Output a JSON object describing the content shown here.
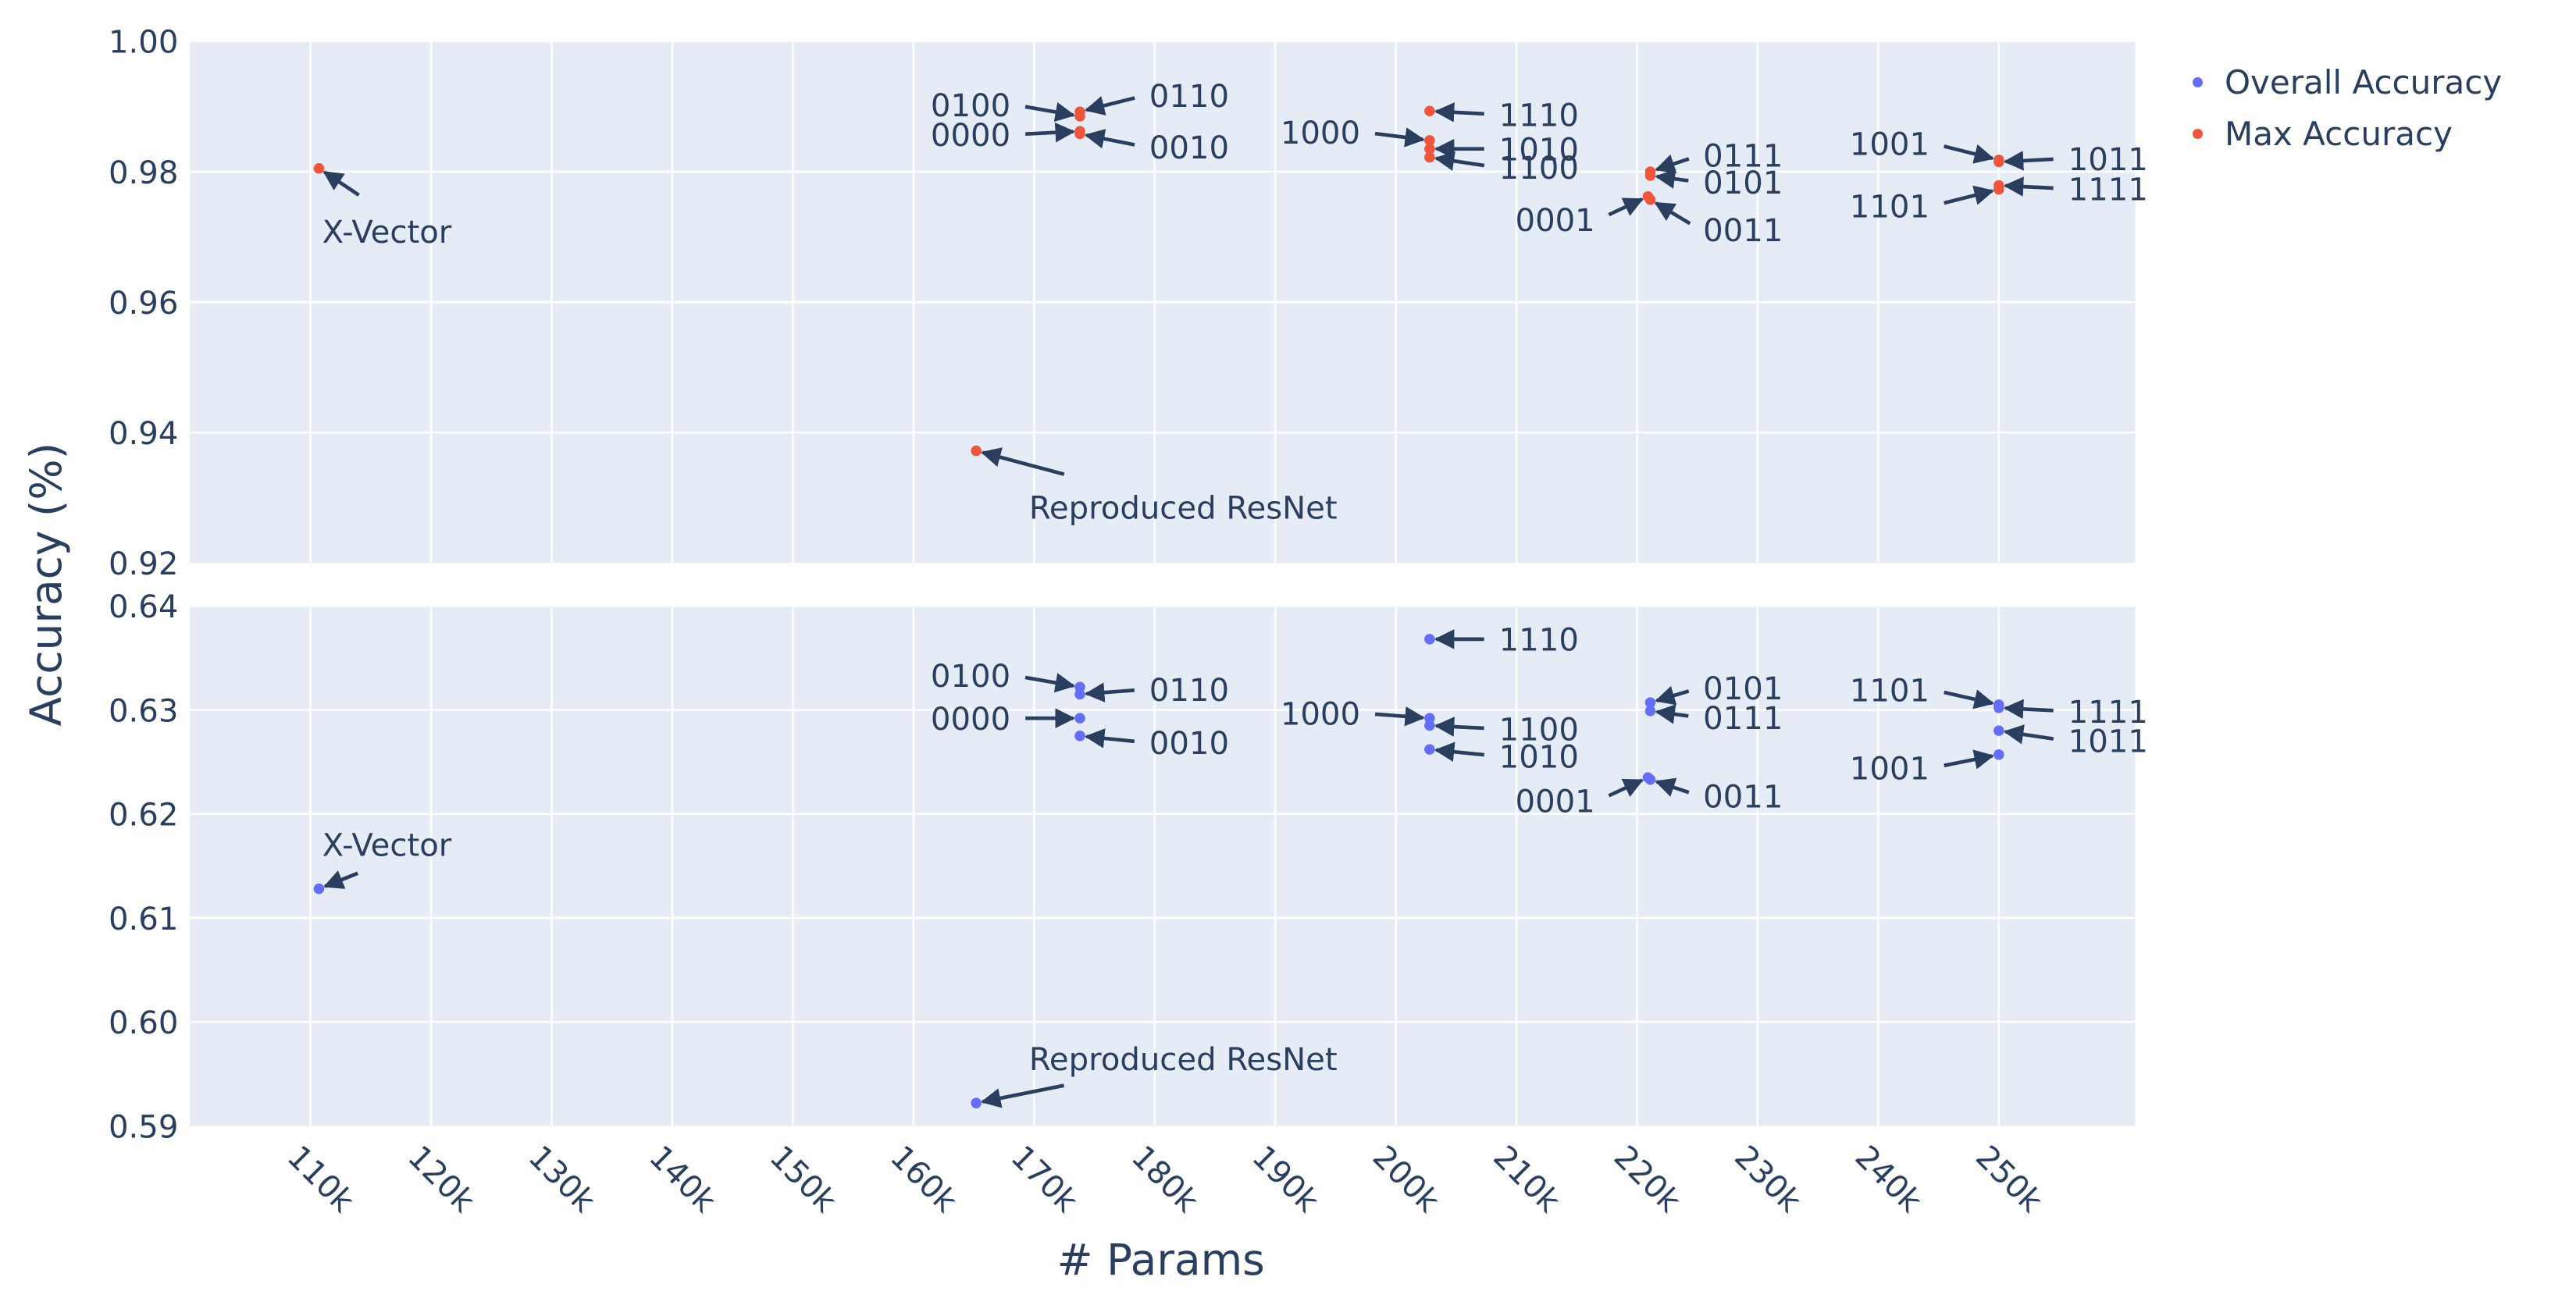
{
  "chart_data": {
    "type": "scatter",
    "xlabel": "# Params",
    "ylabel": "Accuracy (%)",
    "x_ticks": [
      "110k",
      "120k",
      "130k",
      "140k",
      "150k",
      "160k",
      "170k",
      "180k",
      "190k",
      "200k",
      "210k",
      "220k",
      "230k",
      "240k",
      "250k"
    ],
    "legend": [
      {
        "name": "Overall Accuracy",
        "color": "#636efa"
      },
      {
        "name": "Max Accuracy",
        "color": "#ef553b"
      }
    ],
    "panels": [
      {
        "id": "top",
        "series": "Max Accuracy",
        "color": "#ef553b",
        "ylim": [
          0.92,
          1.0
        ],
        "y_ticks": [
          "0.92",
          "0.94",
          "0.96",
          "0.98",
          "1.00"
        ],
        "points": [
          {
            "label": "X-Vector",
            "x": 110700,
            "y": 0.9805,
            "ax": 30,
            "ay": 20
          },
          {
            "label": "Reproduced ResNet",
            "x": 165200,
            "y": 0.9372,
            "ax": 60,
            "ay": 16
          },
          {
            "label": "0100",
            "x": 173800,
            "y": 0.9885,
            "ax": -40,
            "ay": -7
          },
          {
            "label": "0110",
            "x": 173800,
            "y": 0.9892,
            "ax": 40,
            "ay": -10
          },
          {
            "label": "0000",
            "x": 173800,
            "y": 0.9862,
            "ax": -40,
            "ay": 2
          },
          {
            "label": "0010",
            "x": 173800,
            "y": 0.9858,
            "ax": 40,
            "ay": 8
          },
          {
            "label": "1110",
            "x": 202800,
            "y": 0.9893,
            "ax": 40,
            "ay": 2
          },
          {
            "label": "1000",
            "x": 202800,
            "y": 0.9848,
            "ax": -40,
            "ay": -5
          },
          {
            "label": "1010",
            "x": 202800,
            "y": 0.9835,
            "ax": 40,
            "ay": 0
          },
          {
            "label": "1100",
            "x": 202800,
            "y": 0.9822,
            "ax": 40,
            "ay": 6
          },
          {
            "label": "0111",
            "x": 221100,
            "y": 0.98,
            "ax": 30,
            "ay": -10
          },
          {
            "label": "0101",
            "x": 221100,
            "y": 0.9794,
            "ax": 30,
            "ay": 4
          },
          {
            "label": "0001",
            "x": 220900,
            "y": 0.9762,
            "ax": -30,
            "ay": 14
          },
          {
            "label": "0011",
            "x": 221100,
            "y": 0.9757,
            "ax": 30,
            "ay": 18
          },
          {
            "label": "1001",
            "x": 250000,
            "y": 0.9818,
            "ax": -40,
            "ay": -10
          },
          {
            "label": "1011",
            "x": 250000,
            "y": 0.9815,
            "ax": 40,
            "ay": -2
          },
          {
            "label": "1101",
            "x": 250000,
            "y": 0.9773,
            "ax": -40,
            "ay": 10
          },
          {
            "label": "1111",
            "x": 250000,
            "y": 0.9779,
            "ax": 40,
            "ay": 2
          }
        ]
      },
      {
        "id": "bottom",
        "series": "Overall Accuracy",
        "color": "#636efa",
        "ylim": [
          0.59,
          0.64
        ],
        "y_ticks": [
          "0.59",
          "0.60",
          "0.61",
          "0.62",
          "0.63",
          "0.64"
        ],
        "points": [
          {
            "label": "X-Vector",
            "x": 110700,
            "y": 0.6128,
            "ax": 30,
            "ay": -12
          },
          {
            "label": "Reproduced ResNet",
            "x": 165200,
            "y": 0.5922,
            "ax": 60,
            "ay": -12
          },
          {
            "label": "0100",
            "x": 173800,
            "y": 0.6322,
            "ax": -40,
            "ay": -7
          },
          {
            "label": "0110",
            "x": 173800,
            "y": 0.6315,
            "ax": 40,
            "ay": -3
          },
          {
            "label": "0000",
            "x": 173800,
            "y": 0.6292,
            "ax": -40,
            "ay": 0
          },
          {
            "label": "0010",
            "x": 173800,
            "y": 0.6275,
            "ax": 40,
            "ay": 4
          },
          {
            "label": "1110",
            "x": 202800,
            "y": 0.6368,
            "ax": 40,
            "ay": 0
          },
          {
            "label": "1000",
            "x": 202800,
            "y": 0.6292,
            "ax": -40,
            "ay": -3
          },
          {
            "label": "1100",
            "x": 202800,
            "y": 0.6285,
            "ax": 40,
            "ay": 2
          },
          {
            "label": "1010",
            "x": 202800,
            "y": 0.6262,
            "ax": 40,
            "ay": 4
          },
          {
            "label": "0101",
            "x": 221100,
            "y": 0.6307,
            "ax": 30,
            "ay": -9
          },
          {
            "label": "0111",
            "x": 221100,
            "y": 0.6299,
            "ax": 30,
            "ay": 4
          },
          {
            "label": "0001",
            "x": 220900,
            "y": 0.6235,
            "ax": -30,
            "ay": 14
          },
          {
            "label": "0011",
            "x": 221100,
            "y": 0.6233,
            "ax": 30,
            "ay": 10
          },
          {
            "label": "1101",
            "x": 250000,
            "y": 0.6305,
            "ax": -40,
            "ay": -9
          },
          {
            "label": "1111",
            "x": 250000,
            "y": 0.6302,
            "ax": 40,
            "ay": 2
          },
          {
            "label": "1011",
            "x": 250000,
            "y": 0.628,
            "ax": 40,
            "ay": 6
          },
          {
            "label": "1001",
            "x": 250000,
            "y": 0.6257,
            "ax": -40,
            "ay": 8
          }
        ]
      }
    ]
  }
}
